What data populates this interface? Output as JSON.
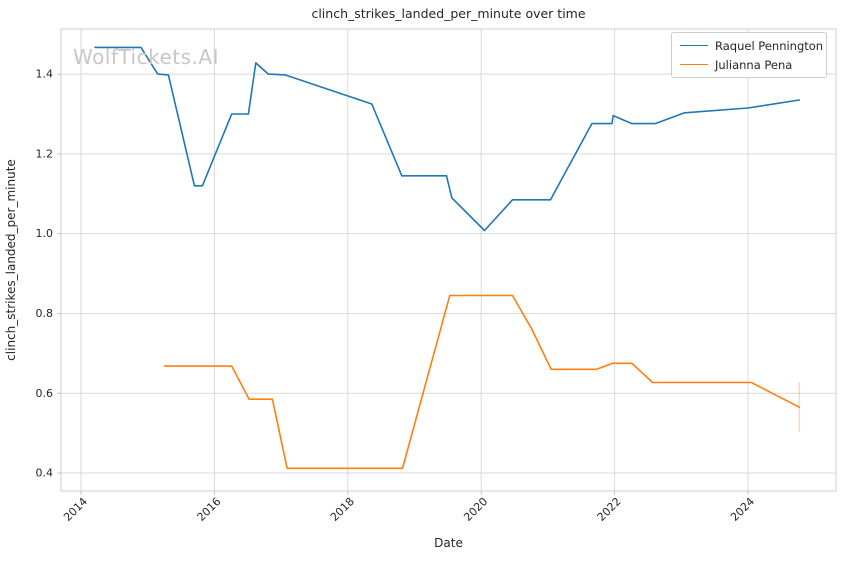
{
  "figure": {
    "watermark": "WolfTickets.AI"
  },
  "chart_data": {
    "type": "line",
    "title": "clinch_strikes_landed_per_minute over time",
    "xlabel": "Date",
    "ylabel": "clinch_strikes_landed_per_minute",
    "xlim": [
      2013.7,
      2025.32
    ],
    "ylim": [
      0.355,
      1.513
    ],
    "x_ticks": [
      2014,
      2016,
      2018,
      2020,
      2022,
      2024
    ],
    "y_ticks": [
      0.4,
      0.6,
      0.8,
      1.0,
      1.2,
      1.4
    ],
    "grid": true,
    "grid_color": "#d9d9d9",
    "spine_color": "#cfcfcf",
    "tick_color": "#b0b0b0",
    "text_color": "#262626",
    "legend": {
      "position": "upper-right"
    },
    "series": [
      {
        "name": "Raquel Pennington",
        "color": "#1f77b4",
        "points": [
          [
            2014.21,
            1.467
          ],
          [
            2014.9,
            1.467
          ],
          [
            2015.15,
            1.4
          ],
          [
            2015.31,
            1.398
          ],
          [
            2015.7,
            1.12
          ],
          [
            2015.82,
            1.12
          ],
          [
            2016.26,
            1.3
          ],
          [
            2016.51,
            1.3
          ],
          [
            2016.62,
            1.428
          ],
          [
            2016.81,
            1.4
          ],
          [
            2017.06,
            1.398
          ],
          [
            2018.36,
            1.325
          ],
          [
            2018.81,
            1.145
          ],
          [
            2019.48,
            1.145
          ],
          [
            2019.56,
            1.09
          ],
          [
            2020.05,
            1.008
          ],
          [
            2020.47,
            1.085
          ],
          [
            2021.04,
            1.085
          ],
          [
            2021.66,
            1.276
          ],
          [
            2021.96,
            1.276
          ],
          [
            2021.98,
            1.296
          ],
          [
            2022.26,
            1.276
          ],
          [
            2022.61,
            1.276
          ],
          [
            2023.05,
            1.303
          ],
          [
            2024.0,
            1.315
          ],
          [
            2024.77,
            1.335
          ]
        ]
      },
      {
        "name": "Julianna Pena",
        "color": "#ff7f0e",
        "points": [
          [
            2015.25,
            0.668
          ],
          [
            2016.26,
            0.668
          ],
          [
            2016.52,
            0.585
          ],
          [
            2016.87,
            0.585
          ],
          [
            2017.09,
            0.412
          ],
          [
            2018.82,
            0.412
          ],
          [
            2019.53,
            0.845
          ],
          [
            2020.47,
            0.845
          ],
          [
            2020.76,
            0.76
          ],
          [
            2021.05,
            0.66
          ],
          [
            2021.73,
            0.66
          ],
          [
            2021.97,
            0.675
          ],
          [
            2022.26,
            0.675
          ],
          [
            2022.57,
            0.627
          ],
          [
            2024.05,
            0.627
          ],
          [
            2024.77,
            0.565
          ]
        ],
        "error_bar": {
          "x": 2024.77,
          "y_low": 0.503,
          "y_high": 0.628
        }
      }
    ]
  }
}
